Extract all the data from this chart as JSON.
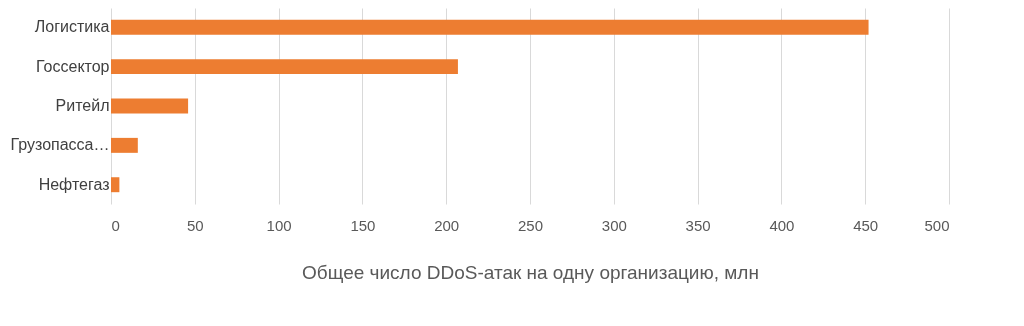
{
  "chart_data": {
    "type": "bar",
    "orientation": "horizontal",
    "categories": [
      "Логистика",
      "Госсектор",
      "Ритейл",
      "Грузопасса…",
      "Нефтегаз"
    ],
    "values": [
      452,
      207,
      46,
      16,
      5
    ],
    "color": "#ed7d31",
    "xlabel": "Общее число DDoS-атак на одну организацию, млн",
    "xlim": [
      0,
      500
    ],
    "xticks": [
      0,
      50,
      100,
      150,
      200,
      250,
      300,
      350,
      400,
      450,
      500
    ],
    "grid": "x"
  }
}
